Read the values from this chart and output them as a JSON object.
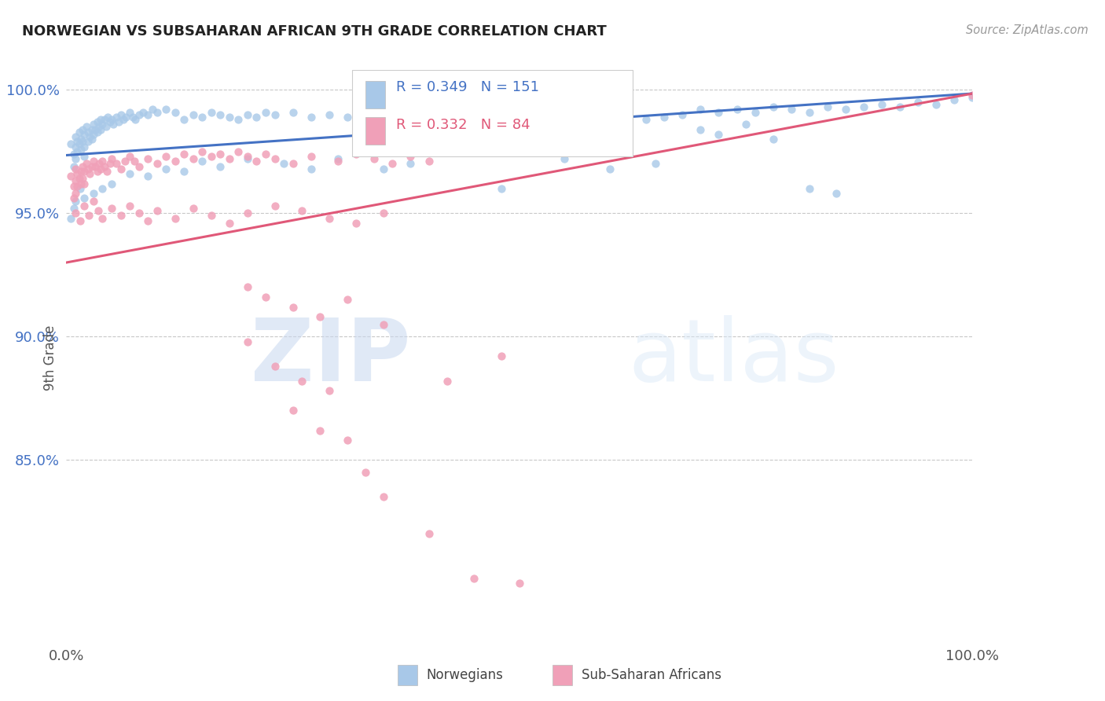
{
  "title": "NORWEGIAN VS SUBSAHARAN AFRICAN 9TH GRADE CORRELATION CHART",
  "source": "Source: ZipAtlas.com",
  "ylabel": "9th Grade",
  "ytick_vals": [
    1.0,
    0.95,
    0.9,
    0.85
  ],
  "ytick_labels": [
    "100.0%",
    "95.0%",
    "90.0%",
    "85.0%"
  ],
  "xtick_vals": [
    0.0,
    1.0
  ],
  "xtick_labels": [
    "0.0%",
    "100.0%"
  ],
  "xlim": [
    0.0,
    1.0
  ],
  "ylim": [
    0.775,
    1.008
  ],
  "blue_color": "#a8c8e8",
  "pink_color": "#f0a0b8",
  "blue_line_color": "#4472c4",
  "pink_line_color": "#e05878",
  "legend_blue_R": "R = 0.349",
  "legend_blue_N": "N = 151",
  "legend_pink_R": "R = 0.332",
  "legend_pink_N": "N = 84",
  "watermark_zip": "ZIP",
  "watermark_atlas": "atlas",
  "blue_trend": [
    0.0,
    0.9735,
    1.0,
    0.9985
  ],
  "pink_trend": [
    0.0,
    0.93,
    1.0,
    0.9985
  ],
  "blue_dots": [
    [
      0.005,
      0.978
    ],
    [
      0.008,
      0.974
    ],
    [
      0.008,
      0.969
    ],
    [
      0.01,
      0.981
    ],
    [
      0.01,
      0.977
    ],
    [
      0.01,
      0.972
    ],
    [
      0.012,
      0.979
    ],
    [
      0.012,
      0.975
    ],
    [
      0.014,
      0.983
    ],
    [
      0.014,
      0.978
    ],
    [
      0.016,
      0.98
    ],
    [
      0.016,
      0.976
    ],
    [
      0.018,
      0.984
    ],
    [
      0.018,
      0.979
    ],
    [
      0.02,
      0.982
    ],
    [
      0.02,
      0.977
    ],
    [
      0.02,
      0.973
    ],
    [
      0.022,
      0.985
    ],
    [
      0.024,
      0.983
    ],
    [
      0.024,
      0.979
    ],
    [
      0.026,
      0.981
    ],
    [
      0.028,
      0.984
    ],
    [
      0.028,
      0.98
    ],
    [
      0.03,
      0.986
    ],
    [
      0.03,
      0.982
    ],
    [
      0.032,
      0.984
    ],
    [
      0.034,
      0.987
    ],
    [
      0.034,
      0.983
    ],
    [
      0.036,
      0.985
    ],
    [
      0.038,
      0.988
    ],
    [
      0.038,
      0.984
    ],
    [
      0.04,
      0.986
    ],
    [
      0.042,
      0.988
    ],
    [
      0.044,
      0.985
    ],
    [
      0.046,
      0.989
    ],
    [
      0.048,
      0.987
    ],
    [
      0.05,
      0.988
    ],
    [
      0.052,
      0.986
    ],
    [
      0.055,
      0.989
    ],
    [
      0.058,
      0.987
    ],
    [
      0.06,
      0.99
    ],
    [
      0.063,
      0.988
    ],
    [
      0.066,
      0.989
    ],
    [
      0.07,
      0.991
    ],
    [
      0.073,
      0.989
    ],
    [
      0.076,
      0.988
    ],
    [
      0.08,
      0.99
    ],
    [
      0.085,
      0.991
    ],
    [
      0.09,
      0.99
    ],
    [
      0.095,
      0.992
    ],
    [
      0.1,
      0.991
    ],
    [
      0.11,
      0.992
    ],
    [
      0.12,
      0.991
    ],
    [
      0.13,
      0.988
    ],
    [
      0.14,
      0.99
    ],
    [
      0.15,
      0.989
    ],
    [
      0.16,
      0.991
    ],
    [
      0.17,
      0.99
    ],
    [
      0.18,
      0.989
    ],
    [
      0.19,
      0.988
    ],
    [
      0.2,
      0.99
    ],
    [
      0.21,
      0.989
    ],
    [
      0.22,
      0.991
    ],
    [
      0.23,
      0.99
    ],
    [
      0.25,
      0.991
    ],
    [
      0.27,
      0.989
    ],
    [
      0.29,
      0.99
    ],
    [
      0.31,
      0.989
    ],
    [
      0.33,
      0.991
    ],
    [
      0.35,
      0.99
    ],
    [
      0.36,
      0.988
    ],
    [
      0.38,
      0.989
    ],
    [
      0.4,
      0.99
    ],
    [
      0.42,
      0.991
    ],
    [
      0.44,
      0.99
    ],
    [
      0.46,
      0.989
    ],
    [
      0.48,
      0.991
    ],
    [
      0.5,
      0.99
    ],
    [
      0.52,
      0.988
    ],
    [
      0.54,
      0.991
    ],
    [
      0.56,
      0.99
    ],
    [
      0.58,
      0.989
    ],
    [
      0.6,
      0.991
    ],
    [
      0.62,
      0.99
    ],
    [
      0.64,
      0.988
    ],
    [
      0.66,
      0.989
    ],
    [
      0.68,
      0.99
    ],
    [
      0.7,
      0.992
    ],
    [
      0.72,
      0.991
    ],
    [
      0.74,
      0.992
    ],
    [
      0.76,
      0.991
    ],
    [
      0.78,
      0.993
    ],
    [
      0.8,
      0.992
    ],
    [
      0.82,
      0.991
    ],
    [
      0.84,
      0.993
    ],
    [
      0.86,
      0.992
    ],
    [
      0.88,
      0.993
    ],
    [
      0.9,
      0.994
    ],
    [
      0.92,
      0.993
    ],
    [
      0.94,
      0.995
    ],
    [
      0.96,
      0.994
    ],
    [
      0.98,
      0.996
    ],
    [
      1.0,
      0.997
    ],
    [
      0.7,
      0.984
    ],
    [
      0.72,
      0.982
    ],
    [
      0.75,
      0.986
    ],
    [
      0.78,
      0.98
    ],
    [
      0.82,
      0.96
    ],
    [
      0.85,
      0.958
    ],
    [
      0.5,
      0.975
    ],
    [
      0.55,
      0.972
    ],
    [
      0.6,
      0.968
    ],
    [
      0.65,
      0.97
    ],
    [
      0.48,
      0.96
    ],
    [
      0.42,
      0.975
    ],
    [
      0.38,
      0.97
    ],
    [
      0.35,
      0.968
    ],
    [
      0.3,
      0.972
    ],
    [
      0.27,
      0.968
    ],
    [
      0.24,
      0.97
    ],
    [
      0.2,
      0.972
    ],
    [
      0.17,
      0.969
    ],
    [
      0.15,
      0.971
    ],
    [
      0.13,
      0.967
    ],
    [
      0.11,
      0.968
    ],
    [
      0.09,
      0.965
    ],
    [
      0.07,
      0.966
    ],
    [
      0.05,
      0.962
    ],
    [
      0.04,
      0.96
    ],
    [
      0.03,
      0.958
    ],
    [
      0.02,
      0.956
    ],
    [
      0.015,
      0.96
    ],
    [
      0.01,
      0.955
    ],
    [
      0.008,
      0.952
    ],
    [
      0.005,
      0.948
    ]
  ],
  "pink_dots": [
    [
      0.005,
      0.965
    ],
    [
      0.008,
      0.961
    ],
    [
      0.008,
      0.956
    ],
    [
      0.01,
      0.968
    ],
    [
      0.01,
      0.963
    ],
    [
      0.01,
      0.958
    ],
    [
      0.012,
      0.966
    ],
    [
      0.012,
      0.961
    ],
    [
      0.014,
      0.964
    ],
    [
      0.016,
      0.967
    ],
    [
      0.016,
      0.962
    ],
    [
      0.018,
      0.969
    ],
    [
      0.018,
      0.964
    ],
    [
      0.02,
      0.967
    ],
    [
      0.02,
      0.962
    ],
    [
      0.022,
      0.97
    ],
    [
      0.024,
      0.968
    ],
    [
      0.026,
      0.966
    ],
    [
      0.028,
      0.969
    ],
    [
      0.03,
      0.971
    ],
    [
      0.032,
      0.969
    ],
    [
      0.034,
      0.967
    ],
    [
      0.036,
      0.97
    ],
    [
      0.038,
      0.968
    ],
    [
      0.04,
      0.971
    ],
    [
      0.042,
      0.969
    ],
    [
      0.045,
      0.967
    ],
    [
      0.048,
      0.97
    ],
    [
      0.05,
      0.972
    ],
    [
      0.055,
      0.97
    ],
    [
      0.06,
      0.968
    ],
    [
      0.065,
      0.971
    ],
    [
      0.07,
      0.973
    ],
    [
      0.075,
      0.971
    ],
    [
      0.08,
      0.969
    ],
    [
      0.09,
      0.972
    ],
    [
      0.1,
      0.97
    ],
    [
      0.11,
      0.973
    ],
    [
      0.12,
      0.971
    ],
    [
      0.13,
      0.974
    ],
    [
      0.14,
      0.972
    ],
    [
      0.15,
      0.975
    ],
    [
      0.16,
      0.973
    ],
    [
      0.17,
      0.974
    ],
    [
      0.18,
      0.972
    ],
    [
      0.19,
      0.975
    ],
    [
      0.2,
      0.973
    ],
    [
      0.21,
      0.971
    ],
    [
      0.22,
      0.974
    ],
    [
      0.23,
      0.972
    ],
    [
      0.25,
      0.97
    ],
    [
      0.27,
      0.973
    ],
    [
      0.3,
      0.971
    ],
    [
      0.32,
      0.974
    ],
    [
      0.34,
      0.972
    ],
    [
      0.36,
      0.97
    ],
    [
      0.38,
      0.973
    ],
    [
      0.4,
      0.971
    ],
    [
      0.45,
      0.975
    ],
    [
      0.5,
      0.978
    ],
    [
      0.01,
      0.95
    ],
    [
      0.015,
      0.947
    ],
    [
      0.02,
      0.953
    ],
    [
      0.025,
      0.949
    ],
    [
      0.03,
      0.955
    ],
    [
      0.035,
      0.951
    ],
    [
      0.04,
      0.948
    ],
    [
      0.05,
      0.952
    ],
    [
      0.06,
      0.949
    ],
    [
      0.07,
      0.953
    ],
    [
      0.08,
      0.95
    ],
    [
      0.09,
      0.947
    ],
    [
      0.1,
      0.951
    ],
    [
      0.12,
      0.948
    ],
    [
      0.14,
      0.952
    ],
    [
      0.16,
      0.949
    ],
    [
      0.18,
      0.946
    ],
    [
      0.2,
      0.95
    ],
    [
      0.23,
      0.953
    ],
    [
      0.26,
      0.951
    ],
    [
      0.29,
      0.948
    ],
    [
      0.32,
      0.946
    ],
    [
      0.35,
      0.95
    ],
    [
      0.2,
      0.92
    ],
    [
      0.22,
      0.916
    ],
    [
      0.25,
      0.912
    ],
    [
      0.28,
      0.908
    ],
    [
      0.31,
      0.915
    ],
    [
      0.35,
      0.905
    ],
    [
      0.2,
      0.898
    ],
    [
      0.23,
      0.888
    ],
    [
      0.26,
      0.882
    ],
    [
      0.29,
      0.878
    ],
    [
      0.25,
      0.87
    ],
    [
      0.28,
      0.862
    ],
    [
      0.31,
      0.858
    ],
    [
      0.33,
      0.845
    ],
    [
      0.35,
      0.835
    ],
    [
      0.4,
      0.82
    ],
    [
      0.45,
      0.802
    ],
    [
      0.5,
      0.8
    ],
    [
      0.48,
      0.892
    ],
    [
      0.42,
      0.882
    ],
    [
      1.0,
      0.998
    ]
  ]
}
